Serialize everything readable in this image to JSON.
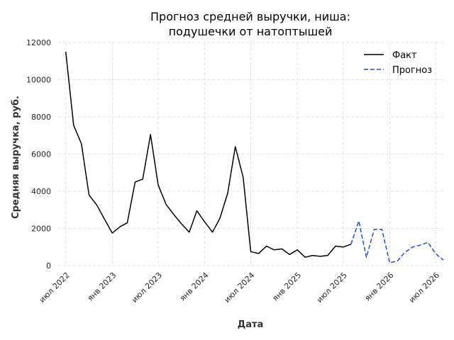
{
  "chart_data": {
    "type": "line",
    "title_lines": [
      "Прогноз средней выручки, ниша:",
      "подушечки от натоптышей"
    ],
    "xlabel": "Дата",
    "ylabel": "Средняя выручка, руб.",
    "ylim": [
      0,
      12000
    ],
    "xlim": [
      "2022-06-01",
      "2026-08-01"
    ],
    "yticks": [
      0,
      2000,
      4000,
      6000,
      8000,
      10000,
      12000
    ],
    "xticks": [
      {
        "date": "2022-07-01",
        "label": "июл 2022"
      },
      {
        "date": "2023-01-01",
        "label": "янв 2023"
      },
      {
        "date": "2023-07-01",
        "label": "июл 2023"
      },
      {
        "date": "2024-01-01",
        "label": "янв 2024"
      },
      {
        "date": "2024-07-01",
        "label": "июл 2024"
      },
      {
        "date": "2025-01-01",
        "label": "янв 2025"
      },
      {
        "date": "2025-07-01",
        "label": "июл 2025"
      },
      {
        "date": "2026-01-01",
        "label": "янв 2026"
      },
      {
        "date": "2026-07-01",
        "label": "июл 2026"
      }
    ],
    "grid": true,
    "legend_position": "top-right",
    "series": [
      {
        "name": "Факт",
        "color": "#000000",
        "dash": "solid",
        "x": [
          "2022-07-01",
          "2022-08-01",
          "2022-09-01",
          "2022-10-01",
          "2022-11-01",
          "2022-12-01",
          "2023-01-01",
          "2023-02-01",
          "2023-03-01",
          "2023-04-01",
          "2023-05-01",
          "2023-06-01",
          "2023-07-01",
          "2023-08-01",
          "2023-09-01",
          "2023-10-01",
          "2023-11-01",
          "2023-12-01",
          "2024-01-01",
          "2024-02-01",
          "2024-03-01",
          "2024-04-01",
          "2024-05-01",
          "2024-06-01",
          "2024-07-01",
          "2024-08-01",
          "2024-09-01",
          "2024-10-01",
          "2024-11-01",
          "2024-12-01",
          "2025-01-01",
          "2025-02-01",
          "2025-03-01",
          "2025-04-01",
          "2025-05-01",
          "2025-06-01",
          "2025-07-01",
          "2025-08-01"
        ],
        "y": [
          11500,
          7550,
          6550,
          3800,
          3250,
          2500,
          1750,
          2100,
          2300,
          4500,
          4650,
          7050,
          4350,
          3300,
          2750,
          2250,
          1800,
          2950,
          2350,
          1800,
          2550,
          3900,
          6400,
          4750,
          750,
          650,
          1050,
          850,
          900,
          600,
          850,
          450,
          550,
          500,
          550,
          1050,
          1000,
          1150
        ]
      },
      {
        "name": "Прогноз",
        "color": "#1f4fd8",
        "dash": "dashed",
        "x": [
          "2025-08-01",
          "2025-09-01",
          "2025-10-01",
          "2025-11-01",
          "2025-12-01",
          "2026-01-01",
          "2026-02-01",
          "2026-03-01",
          "2026-04-01",
          "2026-05-01",
          "2026-06-01",
          "2026-07-01",
          "2026-08-01"
        ],
        "y": [
          1150,
          2400,
          450,
          1950,
          1950,
          150,
          250,
          700,
          1000,
          1100,
          1250,
          650,
          300
        ]
      }
    ]
  }
}
